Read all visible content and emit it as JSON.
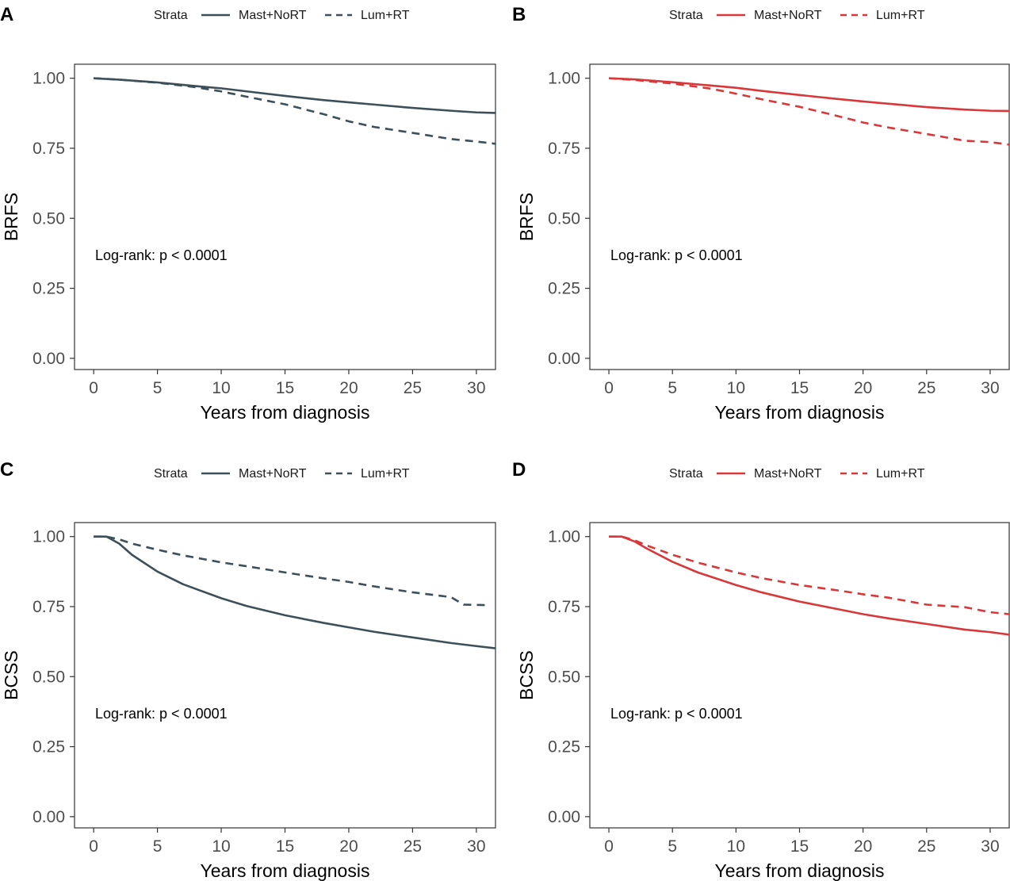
{
  "chart_data": [
    {
      "panel": "A",
      "type": "line",
      "color": "#3d4f59",
      "legend": {
        "title": "Strata",
        "entries": [
          "Mast+NoRT",
          "Lum+RT"
        ]
      },
      "xlabel": "Years from diagnosis",
      "ylabel": "BRFS",
      "xlim": [
        -1.5,
        31.5
      ],
      "ylim": [
        -0.04,
        1.05
      ],
      "xticks": [
        "0",
        "5",
        "10",
        "15",
        "20",
        "25",
        "30"
      ],
      "yticks": [
        "0.00",
        "0.25",
        "0.50",
        "0.75",
        "1.00"
      ],
      "annotation": "Log-rank: p < 0.0001",
      "series": [
        {
          "name": "Mast+NoRT",
          "style": "solid",
          "x": [
            0,
            2,
            5,
            8,
            10,
            12,
            15,
            18,
            20,
            22,
            25,
            28,
            30,
            31.5
          ],
          "y": [
            1.0,
            0.995,
            0.985,
            0.972,
            0.964,
            0.953,
            0.937,
            0.922,
            0.914,
            0.906,
            0.894,
            0.884,
            0.878,
            0.876
          ]
        },
        {
          "name": "Lum+RT",
          "style": "dashed",
          "x": [
            0,
            2,
            5,
            8,
            10,
            12,
            15,
            18,
            20,
            22,
            25,
            28,
            30,
            31.5
          ],
          "y": [
            1.0,
            0.995,
            0.984,
            0.968,
            0.953,
            0.934,
            0.907,
            0.872,
            0.846,
            0.826,
            0.805,
            0.783,
            0.774,
            0.766
          ]
        }
      ]
    },
    {
      "panel": "B",
      "type": "line",
      "color": "#d8383a",
      "legend": {
        "title": "Strata",
        "entries": [
          "Mast+NoRT",
          "Lum+RT"
        ]
      },
      "xlabel": "Years from diagnosis",
      "ylabel": "BRFS",
      "xlim": [
        -1.5,
        31.5
      ],
      "ylim": [
        -0.04,
        1.05
      ],
      "xticks": [
        "0",
        "5",
        "10",
        "15",
        "20",
        "25",
        "30"
      ],
      "yticks": [
        "0.00",
        "0.25",
        "0.50",
        "0.75",
        "1.00"
      ],
      "annotation": "Log-rank: p < 0.0001",
      "series": [
        {
          "name": "Mast+NoRT",
          "style": "solid",
          "x": [
            0,
            2,
            5,
            8,
            10,
            12,
            15,
            18,
            20,
            22,
            25,
            28,
            30,
            31.5
          ],
          "y": [
            1.0,
            0.996,
            0.986,
            0.974,
            0.966,
            0.955,
            0.94,
            0.926,
            0.917,
            0.909,
            0.897,
            0.888,
            0.884,
            0.883
          ]
        },
        {
          "name": "Lum+RT",
          "style": "dashed",
          "x": [
            0,
            2,
            5,
            8,
            10,
            12,
            15,
            18,
            20,
            22,
            25,
            28,
            30,
            31.5
          ],
          "y": [
            1.0,
            0.994,
            0.981,
            0.963,
            0.945,
            0.925,
            0.898,
            0.865,
            0.842,
            0.824,
            0.801,
            0.777,
            0.772,
            0.763
          ]
        }
      ]
    },
    {
      "panel": "C",
      "type": "line",
      "color": "#3d4f59",
      "legend": {
        "title": "Strata",
        "entries": [
          "Mast+NoRT",
          "Lum+RT"
        ]
      },
      "xlabel": "Years from diagnosis",
      "ylabel": "BCSS",
      "xlim": [
        -1.5,
        31.5
      ],
      "ylim": [
        -0.04,
        1.05
      ],
      "xticks": [
        "0",
        "5",
        "10",
        "15",
        "20",
        "25",
        "30"
      ],
      "yticks": [
        "0.00",
        "0.25",
        "0.50",
        "0.75",
        "1.00"
      ],
      "annotation": "Log-rank: p < 0.0001",
      "series": [
        {
          "name": "Mast+NoRT",
          "style": "solid",
          "x": [
            0,
            1,
            2,
            3,
            5,
            7,
            10,
            12,
            15,
            18,
            20,
            22,
            25,
            28,
            30,
            31.5
          ],
          "y": [
            1.0,
            1.0,
            0.975,
            0.935,
            0.875,
            0.83,
            0.78,
            0.752,
            0.719,
            0.692,
            0.676,
            0.66,
            0.64,
            0.62,
            0.609,
            0.601
          ]
        },
        {
          "name": "Lum+RT",
          "style": "dashed",
          "x": [
            0,
            1,
            2,
            3,
            5,
            7,
            10,
            12,
            15,
            18,
            20,
            22,
            25,
            28,
            29,
            31
          ],
          "y": [
            1.0,
            1.0,
            0.99,
            0.975,
            0.953,
            0.933,
            0.908,
            0.894,
            0.872,
            0.851,
            0.838,
            0.822,
            0.801,
            0.784,
            0.757,
            0.755
          ]
        }
      ]
    },
    {
      "panel": "D",
      "type": "line",
      "color": "#d8383a",
      "legend": {
        "title": "Strata",
        "entries": [
          "Mast+NoRT",
          "Lum+RT"
        ]
      },
      "xlabel": "Years from diagnosis",
      "ylabel": "BCSS",
      "xlim": [
        -1.5,
        31.5
      ],
      "ylim": [
        -0.04,
        1.05
      ],
      "xticks": [
        "0",
        "5",
        "10",
        "15",
        "20",
        "25",
        "30"
      ],
      "yticks": [
        "0.00",
        "0.25",
        "0.50",
        "0.75",
        "1.00"
      ],
      "annotation": "Log-rank: p < 0.0001",
      "series": [
        {
          "name": "Mast+NoRT",
          "style": "solid",
          "x": [
            0,
            1,
            2,
            3,
            5,
            7,
            10,
            12,
            15,
            18,
            20,
            22,
            25,
            28,
            30,
            31.5
          ],
          "y": [
            1.0,
            1.0,
            0.983,
            0.957,
            0.91,
            0.872,
            0.827,
            0.801,
            0.768,
            0.741,
            0.723,
            0.708,
            0.688,
            0.668,
            0.659,
            0.65
          ]
        },
        {
          "name": "Lum+RT",
          "style": "dashed",
          "x": [
            0,
            1,
            2,
            3,
            5,
            7,
            10,
            12,
            15,
            18,
            20,
            22,
            25,
            28,
            30,
            31.5
          ],
          "y": [
            1.0,
            1.0,
            0.987,
            0.968,
            0.935,
            0.907,
            0.872,
            0.852,
            0.827,
            0.808,
            0.794,
            0.782,
            0.757,
            0.748,
            0.73,
            0.723
          ]
        }
      ]
    }
  ]
}
